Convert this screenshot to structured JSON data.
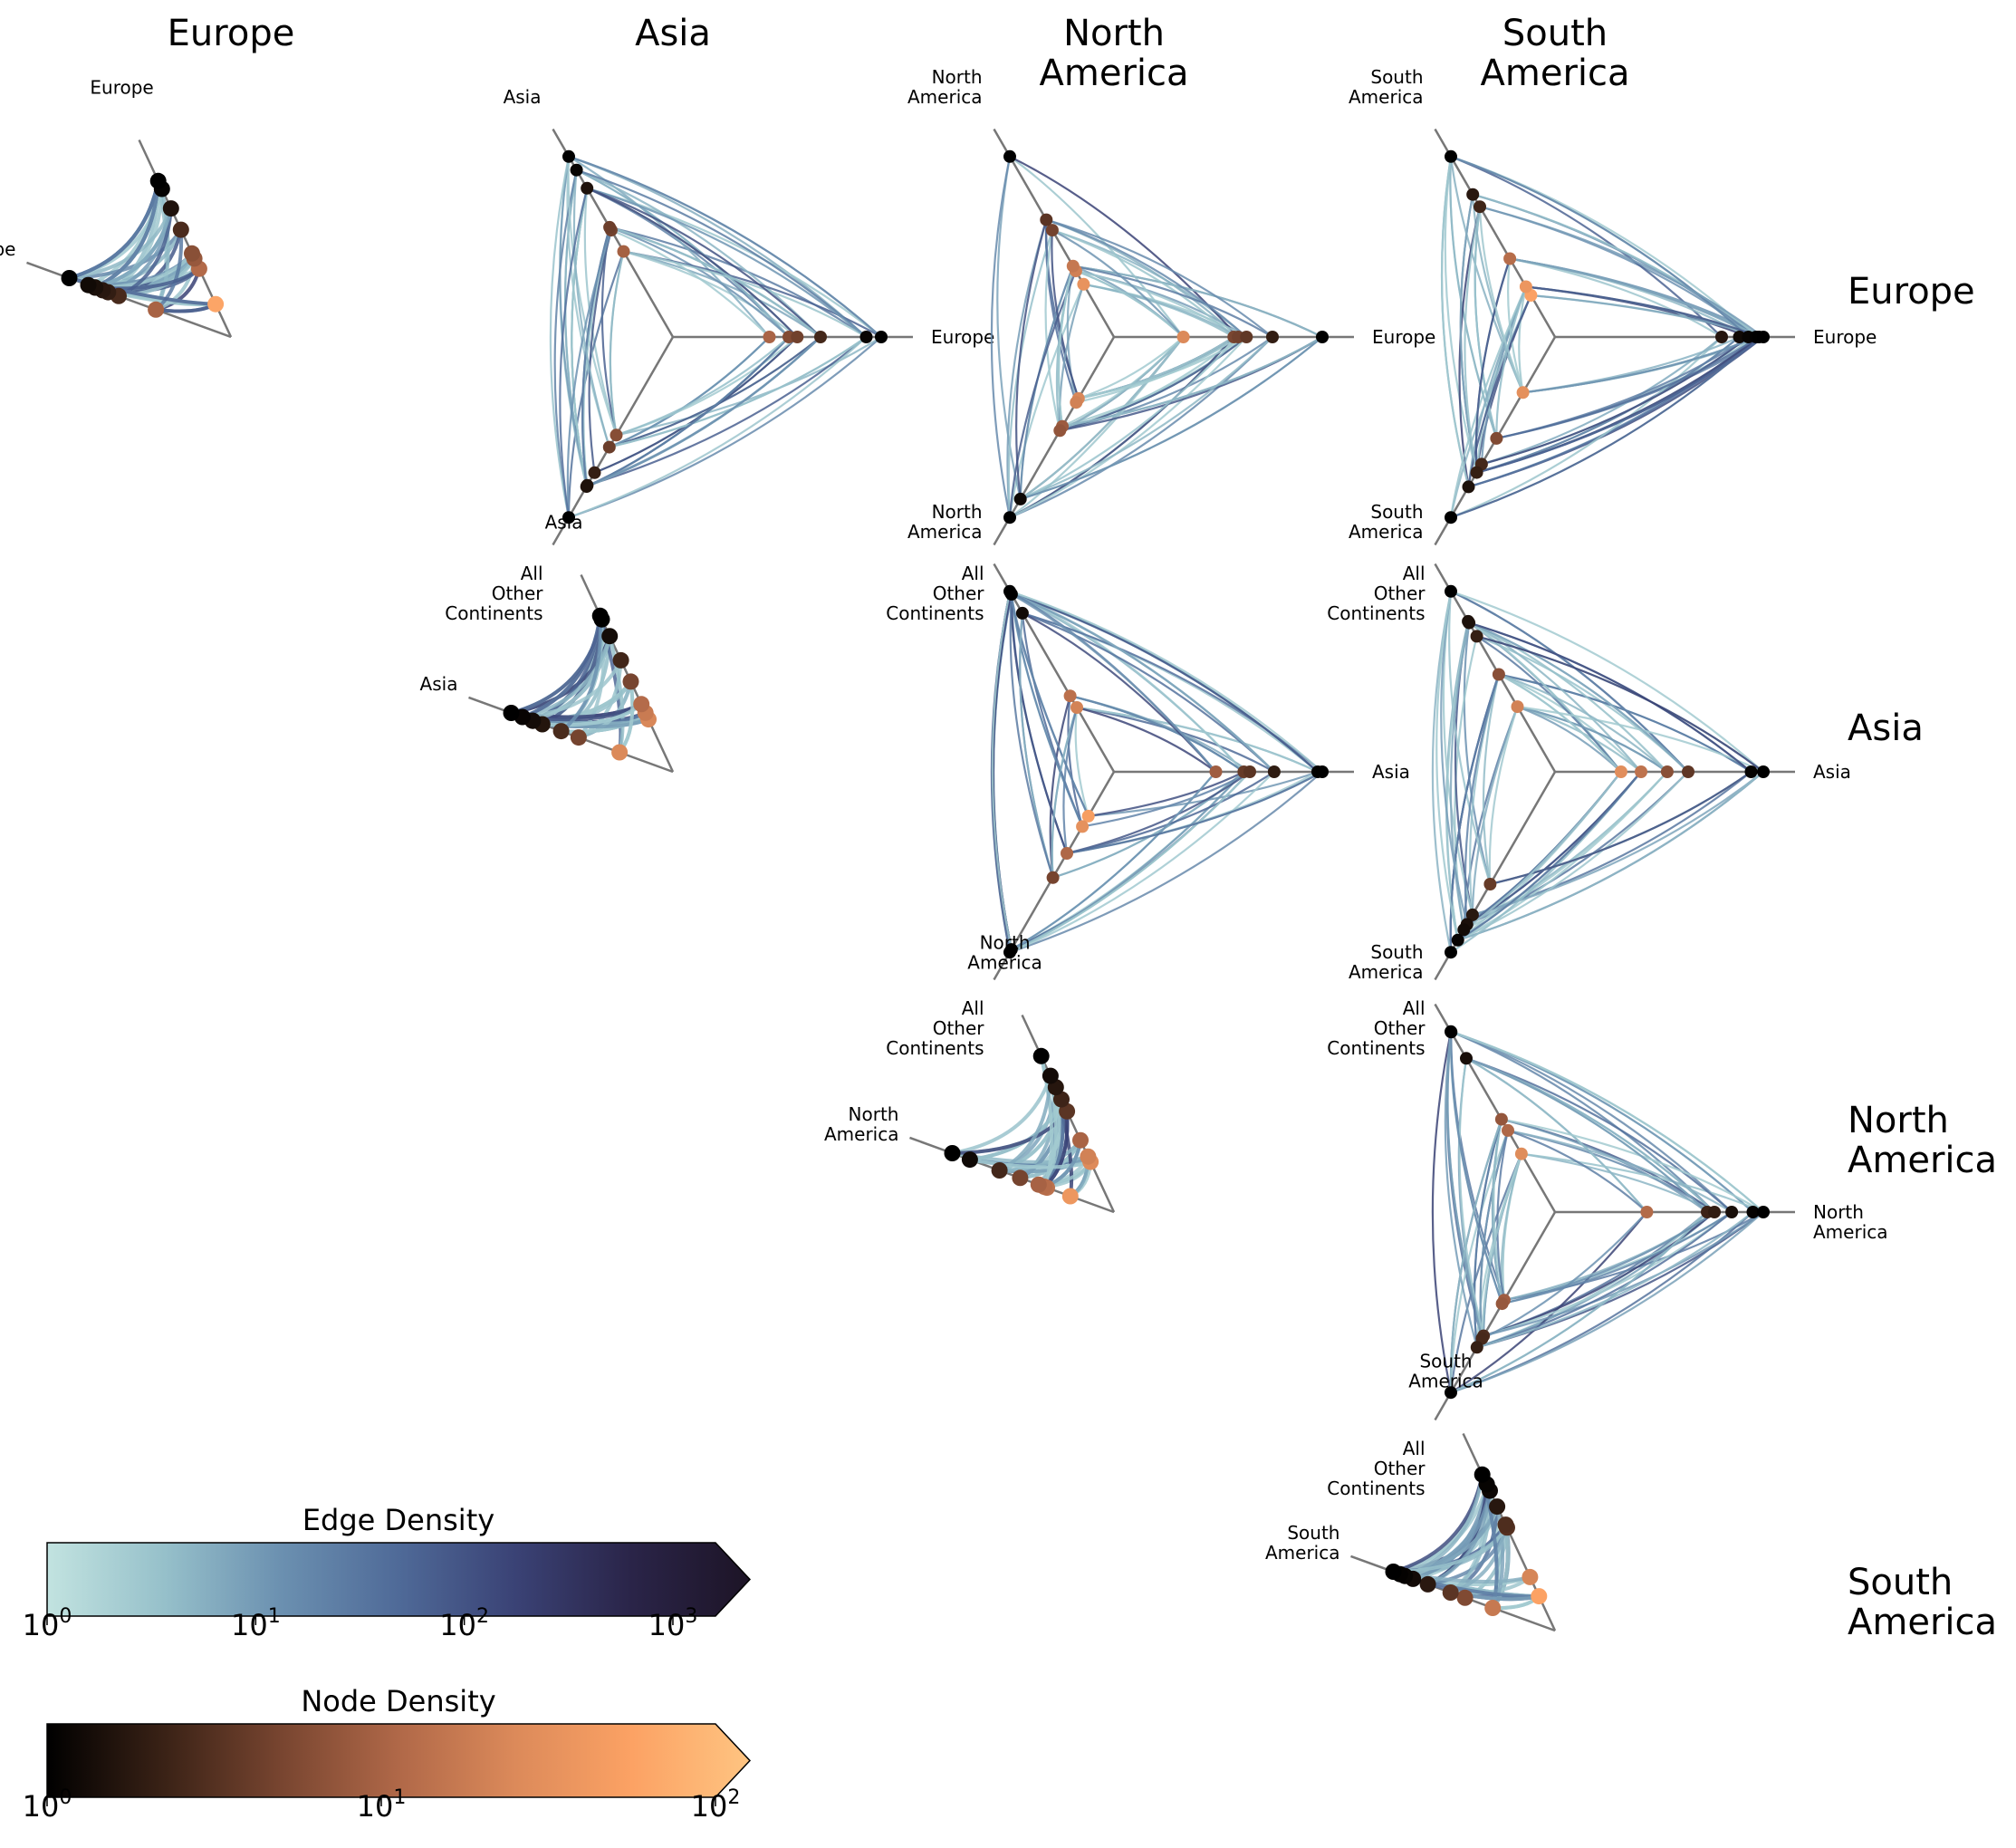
{
  "figure": {
    "column_headers": [
      [
        "Europe"
      ],
      [
        "Asia"
      ],
      [
        "North",
        "America"
      ],
      [
        "South",
        "America"
      ]
    ],
    "row_headers": [
      [
        "Europe"
      ],
      [
        "Asia"
      ],
      [
        "North",
        "America"
      ],
      [
        "South",
        "America"
      ]
    ],
    "panels": [
      {
        "row": 0,
        "col": 0,
        "type": "intra",
        "labels": [
          [
            "Europe"
          ],
          [
            "Europe"
          ]
        ]
      },
      {
        "row": 0,
        "col": 1,
        "type": "inter",
        "labels": [
          [
            "Asia"
          ],
          [
            "Europe"
          ],
          [
            "All",
            "Other",
            "Continents"
          ]
        ]
      },
      {
        "row": 0,
        "col": 2,
        "type": "inter",
        "labels": [
          [
            "North",
            "America"
          ],
          [
            "Europe"
          ],
          [
            "All",
            "Other",
            "Continents"
          ]
        ]
      },
      {
        "row": 0,
        "col": 3,
        "type": "inter",
        "labels": [
          [
            "South",
            "America"
          ],
          [
            "Europe"
          ],
          [
            "All",
            "Other",
            "Continents"
          ]
        ]
      },
      {
        "row": 1,
        "col": 1,
        "type": "intra",
        "labels": [
          [
            "Asia"
          ],
          [
            "Asia"
          ]
        ]
      },
      {
        "row": 1,
        "col": 2,
        "type": "inter",
        "labels": [
          [
            "North",
            "America"
          ],
          [
            "Asia"
          ],
          [
            "All",
            "Other",
            "Continents"
          ]
        ]
      },
      {
        "row": 1,
        "col": 3,
        "type": "inter",
        "labels": [
          [
            "South",
            "America"
          ],
          [
            "Asia"
          ],
          [
            "All",
            "Other",
            "Continents"
          ]
        ]
      },
      {
        "row": 2,
        "col": 2,
        "type": "intra",
        "labels": [
          [
            "North",
            "America"
          ],
          [
            "North",
            "America"
          ]
        ]
      },
      {
        "row": 2,
        "col": 3,
        "type": "inter",
        "labels": [
          [
            "South",
            "America"
          ],
          [
            "North",
            "America"
          ],
          [
            "All",
            "Other",
            "Continents"
          ]
        ]
      },
      {
        "row": 3,
        "col": 3,
        "type": "intra",
        "labels": [
          [
            "South",
            "America"
          ],
          [
            "South",
            "America"
          ]
        ]
      }
    ]
  },
  "colorbars": [
    {
      "title": "Edge Density",
      "scale": "log",
      "range": [
        1,
        1600
      ],
      "extend": "max",
      "ticks": [
        {
          "value": 1,
          "base": "10",
          "exp": "0"
        },
        {
          "value": 10,
          "base": "10",
          "exp": "1"
        },
        {
          "value": 100,
          "base": "10",
          "exp": "2"
        },
        {
          "value": 1000,
          "base": "10",
          "exp": "3"
        }
      ],
      "colors": [
        "#c2e3e0",
        "#96c0ca",
        "#6b90b0",
        "#4f6a98",
        "#3a4275",
        "#2a2448",
        "#1d1426"
      ]
    },
    {
      "title": "Node Density",
      "scale": "log",
      "range": [
        1,
        100
      ],
      "extend": "max",
      "ticks": [
        {
          "value": 1,
          "base": "10",
          "exp": "0"
        },
        {
          "value": 10,
          "base": "10",
          "exp": "1"
        },
        {
          "value": 100,
          "base": "10",
          "exp": "2"
        }
      ],
      "colors": [
        "#000000",
        "#3a2216",
        "#784530",
        "#b06848",
        "#dc8a5a",
        "#fca264",
        "#fec481"
      ]
    }
  ]
}
